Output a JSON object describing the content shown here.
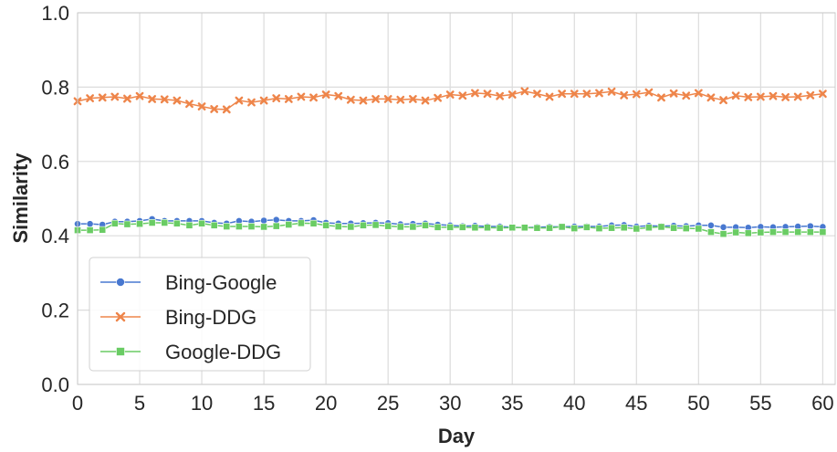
{
  "chart_data": {
    "type": "line",
    "xlabel": "Day",
    "ylabel": "Similarity",
    "xlim": [
      0,
      61
    ],
    "ylim": [
      0.0,
      1.0
    ],
    "xticks": [
      0,
      5,
      10,
      15,
      20,
      25,
      30,
      35,
      40,
      45,
      50,
      55,
      60
    ],
    "yticks": [
      0.0,
      0.2,
      0.4,
      0.6,
      0.8,
      1.0
    ],
    "grid": true,
    "legend_position": "lower-left",
    "x": [
      0,
      1,
      2,
      3,
      4,
      5,
      6,
      7,
      8,
      9,
      10,
      11,
      12,
      13,
      14,
      15,
      16,
      17,
      18,
      19,
      20,
      21,
      22,
      23,
      24,
      25,
      26,
      27,
      28,
      29,
      30,
      31,
      32,
      33,
      34,
      35,
      36,
      37,
      38,
      39,
      40,
      41,
      42,
      43,
      44,
      45,
      46,
      47,
      48,
      49,
      50,
      51,
      52,
      53,
      54,
      55,
      56,
      57,
      58,
      59,
      60
    ],
    "series": [
      {
        "name": "Bing-Google",
        "color": "#4878d0",
        "marker": "circle",
        "values": [
          0.432,
          0.432,
          0.43,
          0.438,
          0.438,
          0.44,
          0.445,
          0.44,
          0.44,
          0.44,
          0.44,
          0.435,
          0.433,
          0.44,
          0.438,
          0.441,
          0.443,
          0.44,
          0.44,
          0.442,
          0.435,
          0.433,
          0.433,
          0.434,
          0.435,
          0.434,
          0.431,
          0.432,
          0.433,
          0.43,
          0.428,
          0.426,
          0.427,
          0.425,
          0.425,
          0.423,
          0.422,
          0.423,
          0.424,
          0.424,
          0.425,
          0.425,
          0.425,
          0.428,
          0.429,
          0.425,
          0.427,
          0.426,
          0.427,
          0.426,
          0.428,
          0.428,
          0.423,
          0.423,
          0.422,
          0.424,
          0.423,
          0.424,
          0.425,
          0.426,
          0.424
        ]
      },
      {
        "name": "Bing-DDG",
        "color": "#ee854a",
        "marker": "x",
        "values": [
          0.762,
          0.77,
          0.772,
          0.774,
          0.769,
          0.776,
          0.768,
          0.767,
          0.764,
          0.755,
          0.748,
          0.741,
          0.74,
          0.764,
          0.759,
          0.764,
          0.77,
          0.768,
          0.774,
          0.772,
          0.78,
          0.776,
          0.766,
          0.764,
          0.768,
          0.768,
          0.766,
          0.768,
          0.764,
          0.771,
          0.78,
          0.777,
          0.784,
          0.782,
          0.776,
          0.78,
          0.789,
          0.782,
          0.774,
          0.782,
          0.782,
          0.782,
          0.784,
          0.788,
          0.778,
          0.781,
          0.786,
          0.772,
          0.783,
          0.777,
          0.784,
          0.772,
          0.765,
          0.777,
          0.773,
          0.774,
          0.776,
          0.773,
          0.774,
          0.778,
          0.782
        ]
      },
      {
        "name": "Google-DDG",
        "color": "#6acc64",
        "marker": "square",
        "values": [
          0.415,
          0.415,
          0.416,
          0.433,
          0.431,
          0.432,
          0.435,
          0.435,
          0.433,
          0.428,
          0.433,
          0.428,
          0.425,
          0.425,
          0.425,
          0.424,
          0.426,
          0.43,
          0.434,
          0.433,
          0.428,
          0.425,
          0.424,
          0.428,
          0.429,
          0.426,
          0.424,
          0.424,
          0.428,
          0.423,
          0.423,
          0.423,
          0.422,
          0.422,
          0.421,
          0.422,
          0.422,
          0.421,
          0.421,
          0.424,
          0.42,
          0.423,
          0.42,
          0.421,
          0.422,
          0.419,
          0.422,
          0.424,
          0.421,
          0.42,
          0.419,
          0.41,
          0.405,
          0.409,
          0.407,
          0.409,
          0.41,
          0.41,
          0.41,
          0.41,
          0.41
        ]
      }
    ]
  }
}
